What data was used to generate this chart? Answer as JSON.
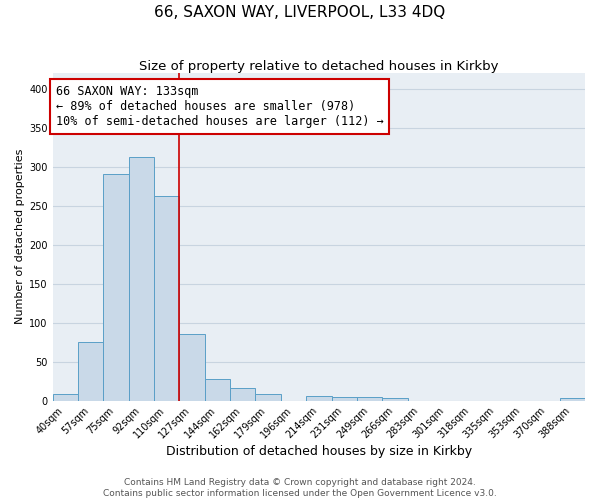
{
  "title": "66, SAXON WAY, LIVERPOOL, L33 4DQ",
  "subtitle": "Size of property relative to detached houses in Kirkby",
  "xlabel": "Distribution of detached houses by size in Kirkby",
  "ylabel": "Number of detached properties",
  "bar_labels": [
    "40sqm",
    "57sqm",
    "75sqm",
    "92sqm",
    "110sqm",
    "127sqm",
    "144sqm",
    "162sqm",
    "179sqm",
    "196sqm",
    "214sqm",
    "231sqm",
    "249sqm",
    "266sqm",
    "283sqm",
    "301sqm",
    "318sqm",
    "335sqm",
    "353sqm",
    "370sqm",
    "388sqm"
  ],
  "bar_values": [
    8,
    75,
    290,
    312,
    262,
    85,
    28,
    16,
    9,
    0,
    6,
    5,
    4,
    3,
    0,
    0,
    0,
    0,
    0,
    0,
    3
  ],
  "bar_color": "#c9d9e8",
  "bar_edge_color": "#5a9fc7",
  "vline_x": 5.0,
  "vline_color": "#cc0000",
  "annotation_line1": "66 SAXON WAY: 133sqm",
  "annotation_line2": "← 89% of detached houses are smaller (978)",
  "annotation_line3": "10% of semi-detached houses are larger (112) →",
  "annotation_box_color": "#cc0000",
  "ylim": [
    0,
    420
  ],
  "yticks": [
    0,
    50,
    100,
    150,
    200,
    250,
    300,
    350,
    400
  ],
  "background_color": "#e8eef4",
  "grid_color": "#c8d4e0",
  "footer1": "Contains HM Land Registry data © Crown copyright and database right 2024.",
  "footer2": "Contains public sector information licensed under the Open Government Licence v3.0.",
  "title_fontsize": 11,
  "subtitle_fontsize": 9.5,
  "xlabel_fontsize": 9,
  "ylabel_fontsize": 8,
  "tick_fontsize": 7,
  "annotation_fontsize": 8.5,
  "footer_fontsize": 6.5
}
